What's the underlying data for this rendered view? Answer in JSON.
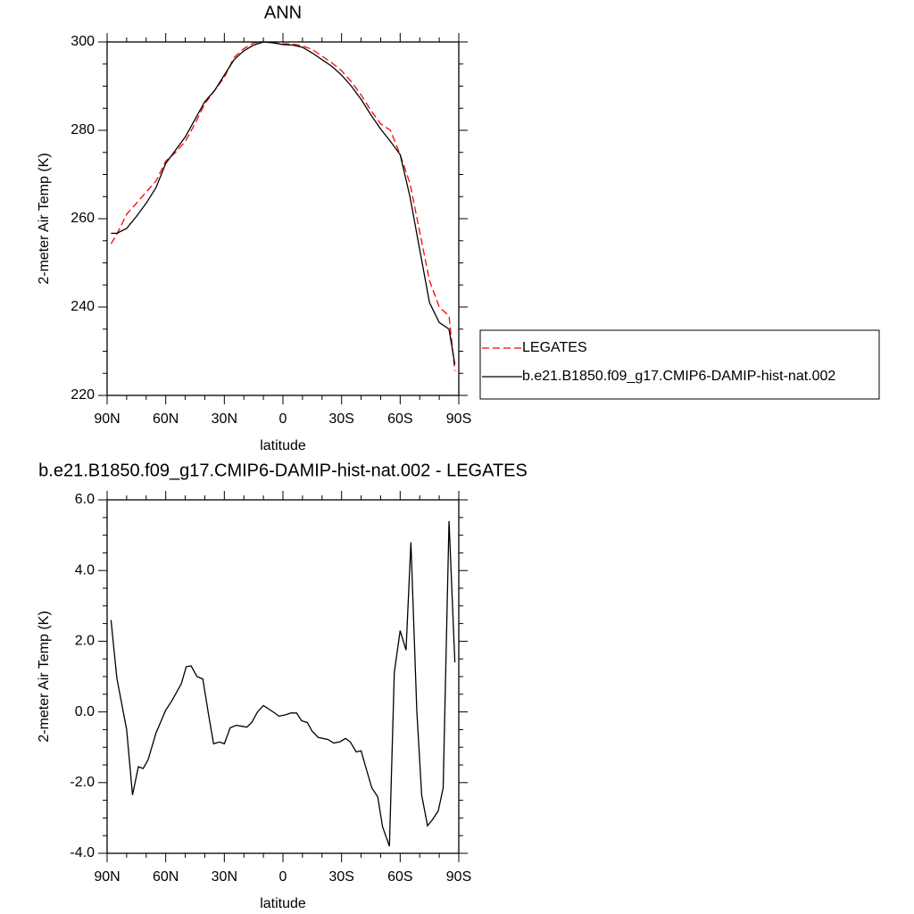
{
  "chart_data": [
    {
      "type": "line",
      "title": "ANN",
      "xlabel": "latitude",
      "ylabel": "2-meter Air Temp (K)",
      "x": [
        88,
        85,
        80,
        75,
        70,
        65,
        60,
        55,
        50,
        45,
        40,
        35,
        30,
        25,
        20,
        15,
        10,
        5,
        0,
        -5,
        -10,
        -15,
        -20,
        -25,
        -30,
        -35,
        -40,
        -45,
        -50,
        -55,
        -60,
        -65,
        -70,
        -75,
        -80,
        -85,
        -88
      ],
      "series": [
        {
          "name": "LEGATES",
          "color": "#ff0000",
          "linestyle": "dashed",
          "values": [
            254.3,
            256.5,
            261,
            263.5,
            266,
            268.5,
            273,
            275,
            277.5,
            281.5,
            286,
            289,
            292,
            296.5,
            298.5,
            299.8,
            300,
            299.8,
            299.6,
            299.5,
            299.1,
            298.3,
            296.8,
            295.3,
            293.5,
            291,
            288,
            284.5,
            281.5,
            280,
            274.5,
            268,
            257,
            246,
            240,
            238,
            225.5
          ]
        },
        {
          "name": "b.e21.B1850.f09_g17.CMIP6-DAMIP-hist-nat.002",
          "color": "#000000",
          "linestyle": "solid",
          "values": [
            256.7,
            256.7,
            257.8,
            260.5,
            263.5,
            267,
            272.5,
            275.5,
            278.5,
            282.5,
            286.5,
            289,
            292.5,
            296,
            298,
            299.3,
            300,
            299.8,
            299.4,
            299.3,
            298.8,
            297.5,
            296,
            294.5,
            292.5,
            290,
            287,
            283.5,
            280.3,
            277.5,
            274.5,
            265,
            253,
            241,
            236.5,
            235,
            227
          ]
        }
      ],
      "xlim": [
        90,
        -90
      ],
      "xticks": [
        {
          "value": 90,
          "label": "90N"
        },
        {
          "value": 60,
          "label": "60N"
        },
        {
          "value": 30,
          "label": "30N"
        },
        0,
        {
          "value": -30,
          "label": "30S"
        },
        {
          "value": -60,
          "label": "60S"
        },
        {
          "value": -90,
          "label": "90S"
        }
      ],
      "ylim": [
        220,
        300
      ],
      "yticks": [
        220,
        240,
        260,
        280,
        300
      ],
      "legend": "right"
    },
    {
      "type": "line",
      "title": "b.e21.B1850.f09_g17.CMIP6-DAMIP-hist-nat.002 - LEGATES",
      "xlabel": "latitude",
      "ylabel": "2-meter Air Temp (K)",
      "x": [
        88,
        85,
        80,
        77,
        74,
        71.5,
        69,
        65,
        60,
        57,
        52,
        49.5,
        47,
        44,
        41,
        38,
        35.5,
        32.5,
        30,
        27,
        24,
        21.5,
        18.5,
        16,
        13,
        10,
        4.5,
        2,
        -1.5,
        -4,
        -7,
        -9.5,
        -12.5,
        -15,
        -18,
        -23,
        -26,
        -29,
        -32,
        -34.5,
        -37.5,
        -40,
        -43,
        -45.5,
        -48.5,
        -51,
        -54.5,
        -57,
        -60,
        -63,
        -65.5,
        -68.5,
        -71,
        -74,
        -76.5,
        -79.5,
        -82,
        -85,
        -88
      ],
      "series": [
        {
          "color": "#000000",
          "linestyle": "solid",
          "values": [
            2.6,
            0.95,
            -0.5,
            -2.35,
            -1.55,
            -1.6,
            -1.35,
            -0.6,
            0.05,
            0.3,
            0.8,
            1.28,
            1.3,
            1.0,
            0.93,
            -0.1,
            -0.9,
            -0.85,
            -0.9,
            -0.45,
            -0.38,
            -0.4,
            -0.43,
            -0.3,
            0.0,
            0.18,
            -0.02,
            -0.12,
            -0.08,
            -0.03,
            -0.03,
            -0.25,
            -0.3,
            -0.55,
            -0.72,
            -0.78,
            -0.88,
            -0.85,
            -0.75,
            -0.85,
            -1.13,
            -1.1,
            -1.68,
            -2.15,
            -2.4,
            -3.25,
            -3.8,
            1.12,
            2.3,
            1.75,
            4.8,
            0.05,
            -2.35,
            -3.22,
            -3.05,
            -2.8,
            -2.15,
            5.4,
            1.4
          ]
        }
      ],
      "xlim": [
        90,
        -90
      ],
      "xticks": [
        {
          "value": 90,
          "label": "90N"
        },
        {
          "value": 60,
          "label": "60N"
        },
        {
          "value": 30,
          "label": "30N"
        },
        0,
        {
          "value": -30,
          "label": "30S"
        },
        {
          "value": -60,
          "label": "60S"
        },
        {
          "value": -90,
          "label": "90S"
        }
      ],
      "ylim": [
        -4,
        6
      ],
      "yticks": [
        {
          "value": -4,
          "label": "-4.0"
        },
        {
          "value": -2,
          "label": "-2.0"
        },
        {
          "value": 0,
          "label": "0.0"
        },
        {
          "value": 2,
          "label": "2.0"
        },
        {
          "value": 4,
          "label": "4.0"
        },
        {
          "value": 6,
          "label": "6.0"
        }
      ]
    }
  ]
}
